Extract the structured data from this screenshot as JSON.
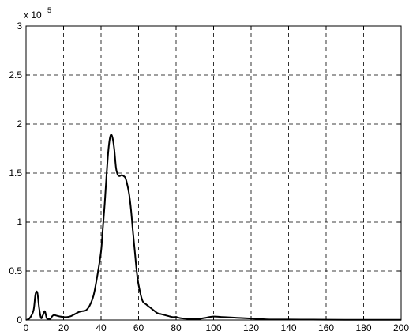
{
  "chart_data": {
    "type": "line",
    "title": "",
    "xlabel": "",
    "ylabel": "",
    "xlim": [
      0,
      200
    ],
    "ylim": [
      0,
      3
    ],
    "y_exponent_label": "x 10",
    "y_exponent_power": "5",
    "grid": true,
    "grid_style": "dashed",
    "x_ticks": [
      0,
      20,
      40,
      60,
      80,
      100,
      120,
      140,
      160,
      180,
      200
    ],
    "x_tick_labels": [
      "0",
      "20",
      "40",
      "60",
      "80",
      "100",
      "120",
      "140",
      "160",
      "180",
      "200"
    ],
    "y_ticks": [
      0,
      0.5,
      1,
      1.5,
      2,
      2.5,
      3
    ],
    "y_tick_labels": [
      "0",
      "0.5",
      "1",
      "1.5",
      "2",
      "2.5",
      "3"
    ],
    "series": [
      {
        "color": "#000000",
        "x": [
          0,
          2,
          4,
          5,
          6,
          7,
          8,
          9,
          10,
          11,
          12,
          13,
          14,
          15,
          17,
          20,
          22,
          24,
          26,
          28,
          30,
          32,
          34,
          36,
          38,
          40,
          41,
          42,
          43,
          44,
          45,
          46,
          47,
          48,
          49,
          50,
          51,
          52,
          53,
          54,
          55,
          56,
          57,
          58,
          59,
          60,
          62,
          64,
          66,
          68,
          70,
          72,
          74,
          76,
          78,
          80,
          82,
          84,
          86,
          88,
          90,
          92,
          95,
          100,
          105,
          110,
          115,
          120,
          125,
          130,
          140,
          160,
          180,
          200
        ],
        "y": [
          0.0,
          0.02,
          0.1,
          0.26,
          0.28,
          0.12,
          0.02,
          0.05,
          0.09,
          0.02,
          0.01,
          0.01,
          0.04,
          0.05,
          0.04,
          0.03,
          0.03,
          0.04,
          0.06,
          0.08,
          0.09,
          0.1,
          0.15,
          0.25,
          0.45,
          0.7,
          0.95,
          1.2,
          1.5,
          1.75,
          1.88,
          1.87,
          1.75,
          1.55,
          1.48,
          1.47,
          1.48,
          1.47,
          1.45,
          1.38,
          1.28,
          1.12,
          0.9,
          0.7,
          0.5,
          0.36,
          0.2,
          0.16,
          0.13,
          0.1,
          0.07,
          0.06,
          0.05,
          0.04,
          0.03,
          0.03,
          0.02,
          0.015,
          0.012,
          0.01,
          0.01,
          0.01,
          0.02,
          0.035,
          0.03,
          0.025,
          0.02,
          0.015,
          0.01,
          0.005,
          0.005,
          0.003,
          0.002,
          0.002
        ]
      }
    ]
  }
}
